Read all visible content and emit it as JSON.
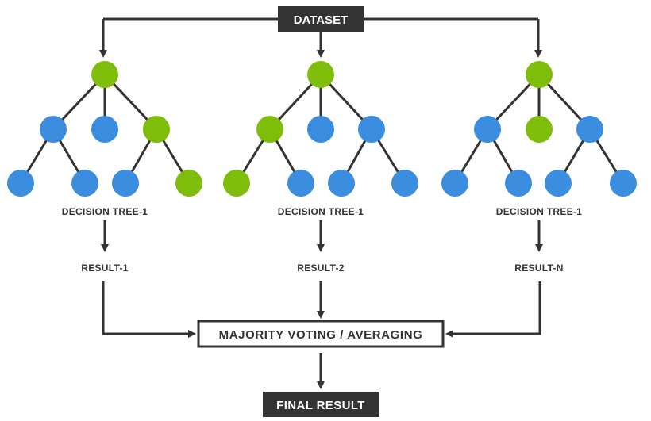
{
  "dataset_label": "DATASET",
  "aggregator_label": "MAJORITY VOTING / AVERAGING",
  "final_label": "FINAL RESULT",
  "colors": {
    "line": "#333333",
    "blue_node": "#3b8de0",
    "green_node": "#7ebd0a",
    "box_fill": "#333333",
    "box_text": "#ffffff"
  },
  "trees": [
    {
      "label": "DECISION TREE-1",
      "result_label": "RESULT-1",
      "levels": [
        [
          "green"
        ],
        [
          "blue",
          "blue",
          "green"
        ],
        [
          "blue",
          "blue",
          "blue",
          "green"
        ]
      ]
    },
    {
      "label": "DECISION TREE-1",
      "result_label": "RESULT-2",
      "levels": [
        [
          "green"
        ],
        [
          "green",
          "blue",
          "blue"
        ],
        [
          "green",
          "blue",
          "blue",
          "blue"
        ]
      ]
    },
    {
      "label": "DECISION TREE-1",
      "result_label": "RESULT-N",
      "levels": [
        [
          "green"
        ],
        [
          "blue",
          "green",
          "blue"
        ],
        [
          "blue",
          "blue",
          "blue",
          "blue"
        ]
      ]
    }
  ]
}
